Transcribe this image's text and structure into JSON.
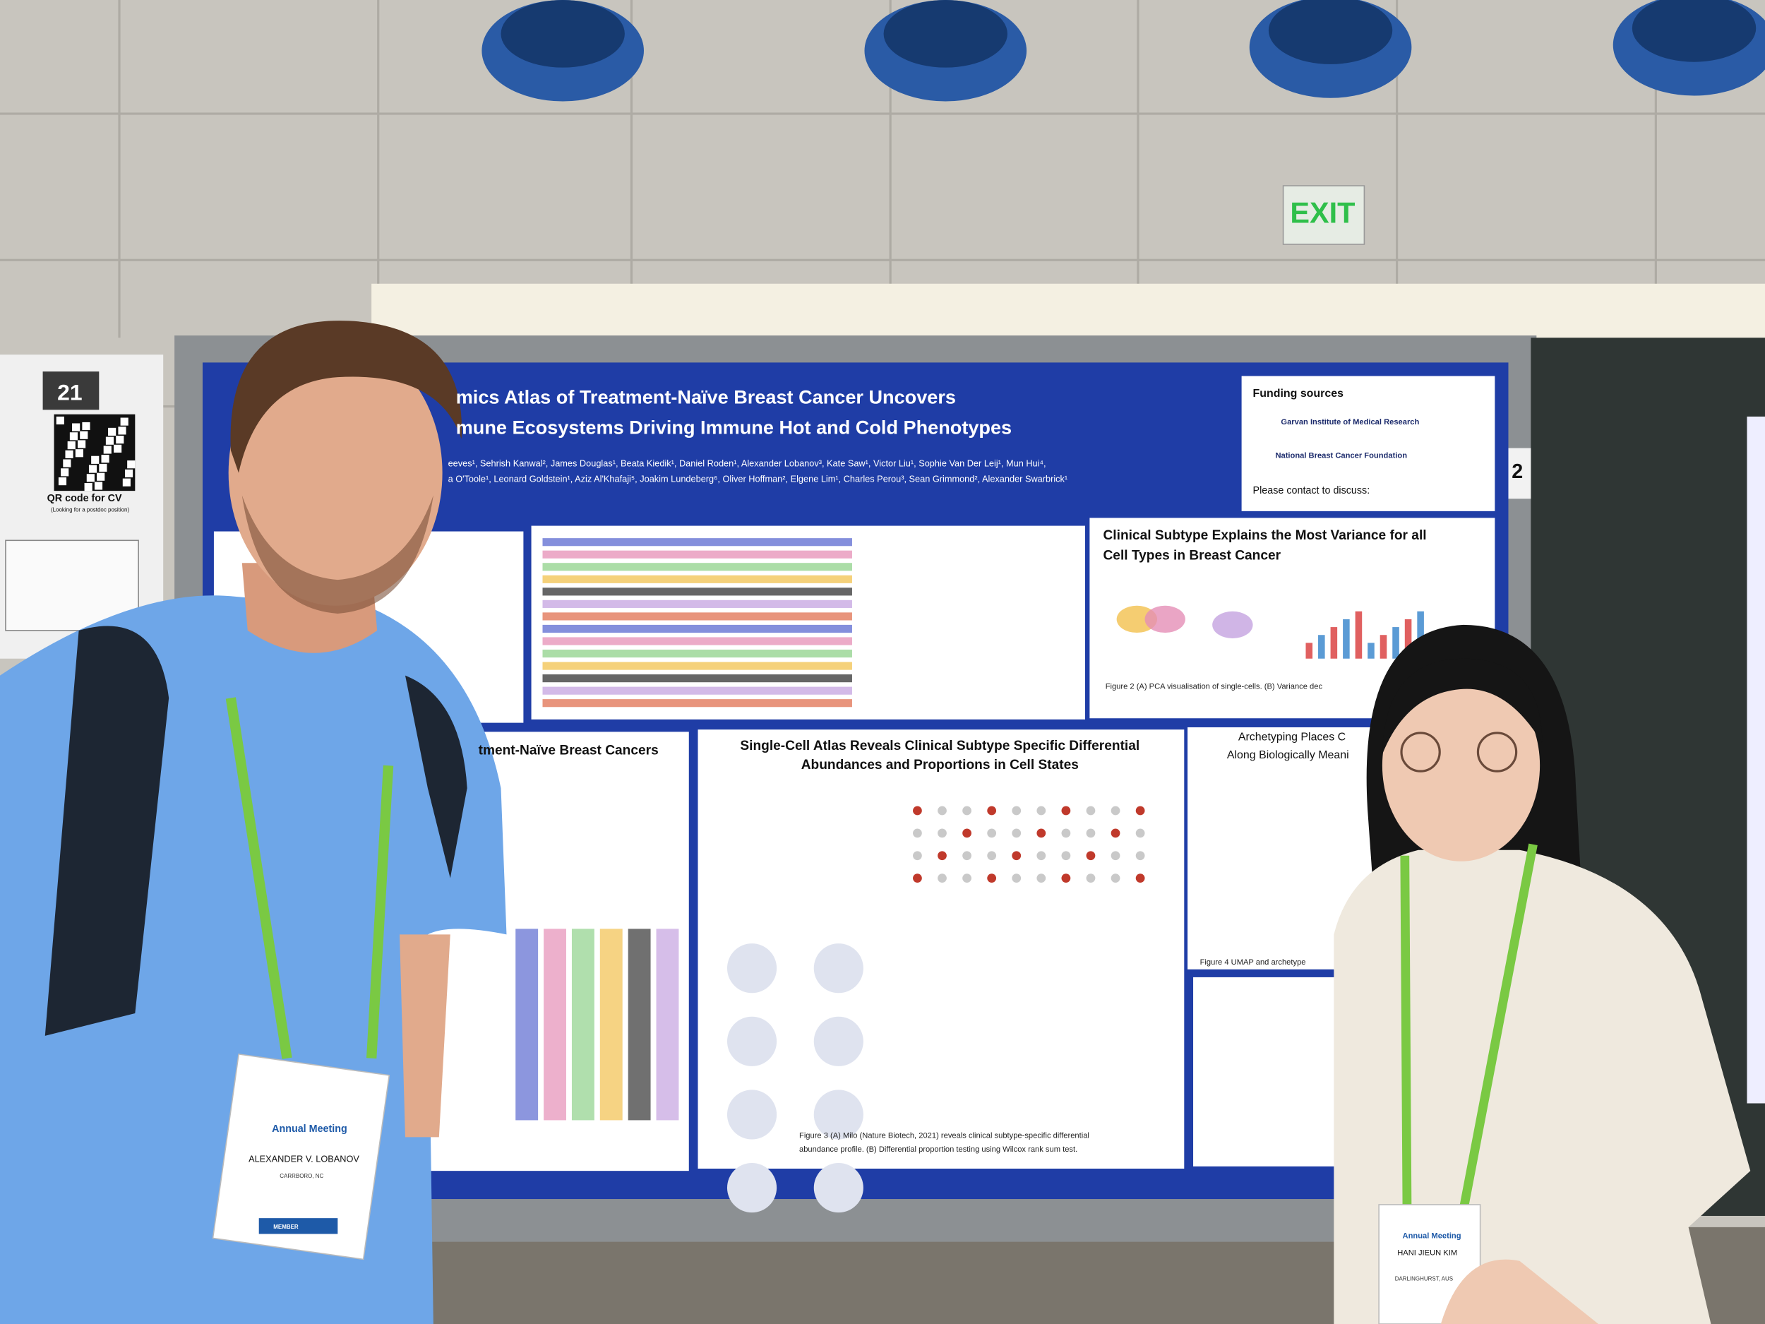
{
  "sign": {
    "exit": "EXIT"
  },
  "side_board": {
    "number": "21",
    "caption": "QR code for CV",
    "note": "(Looking for a postdoc position)"
  },
  "board_number": "2",
  "poster": {
    "title": [
      "mics Atlas of Treatment-Naïve Breast Cancer Uncovers",
      "mune Ecosystems Driving Immune Hot and Cold Phenotypes"
    ],
    "authors": [
      "eeves¹, Sehrish Kanwal², James Douglas¹, Beata Kiedik¹, Daniel Roden¹, Alexander Lobanov³, Kate Saw¹, Victor Liu¹, Sophie Van Der Leij¹, Mun Hui⁴,",
      "a O'Toole¹, Leonard Goldstein¹, Aziz Al'Khafaji⁵, Joakim Lundeberg⁶, Oliver Hoffman², Elgene Lim¹, Charles Perou³, Sean Grimmond², Alexander Swarbrick¹"
    ],
    "funding": {
      "heading": "Funding sources",
      "orgs": [
        "Garvan Institute of Medical Research",
        "National Breast Cancer Foundation"
      ],
      "contact": "Please contact to discuss:"
    },
    "sections": [
      [
        "Clinical Subtype Explains the Most Variance for all",
        "Cell Types in Breast Cancer"
      ],
      [
        "Single-Cell Atlas Reveals Clinical Subtype Specific Differential",
        "Abundances and Proportions in Cell States"
      ],
      [
        "tment-Naïve Breast Cancers"
      ],
      [
        "Archetyping Places C",
        "Along Biologically Meani"
      ]
    ],
    "captions": [
      "Figure 2 (A) PCA visualisation of single-cells. (B) Variance dec",
      "Figure 3 (A) Milo (Nature Biotech, 2021) reveals clinical subtype-specific differential",
      "abundance profile. (B) Differential proportion testing using Wilcox rank sum test.",
      "Figure 4 UMAP and archetype"
    ]
  },
  "badges": [
    {
      "meeting": "Annual Meeting",
      "name": "ALEXANDER V. LOBANOV",
      "location": "CARRBORO, NC",
      "role": "MEMBER"
    },
    {
      "meeting": "Annual Meeting",
      "name": "HANI JIEUN KIM",
      "location": "DARLINGHURST, AUS"
    }
  ]
}
